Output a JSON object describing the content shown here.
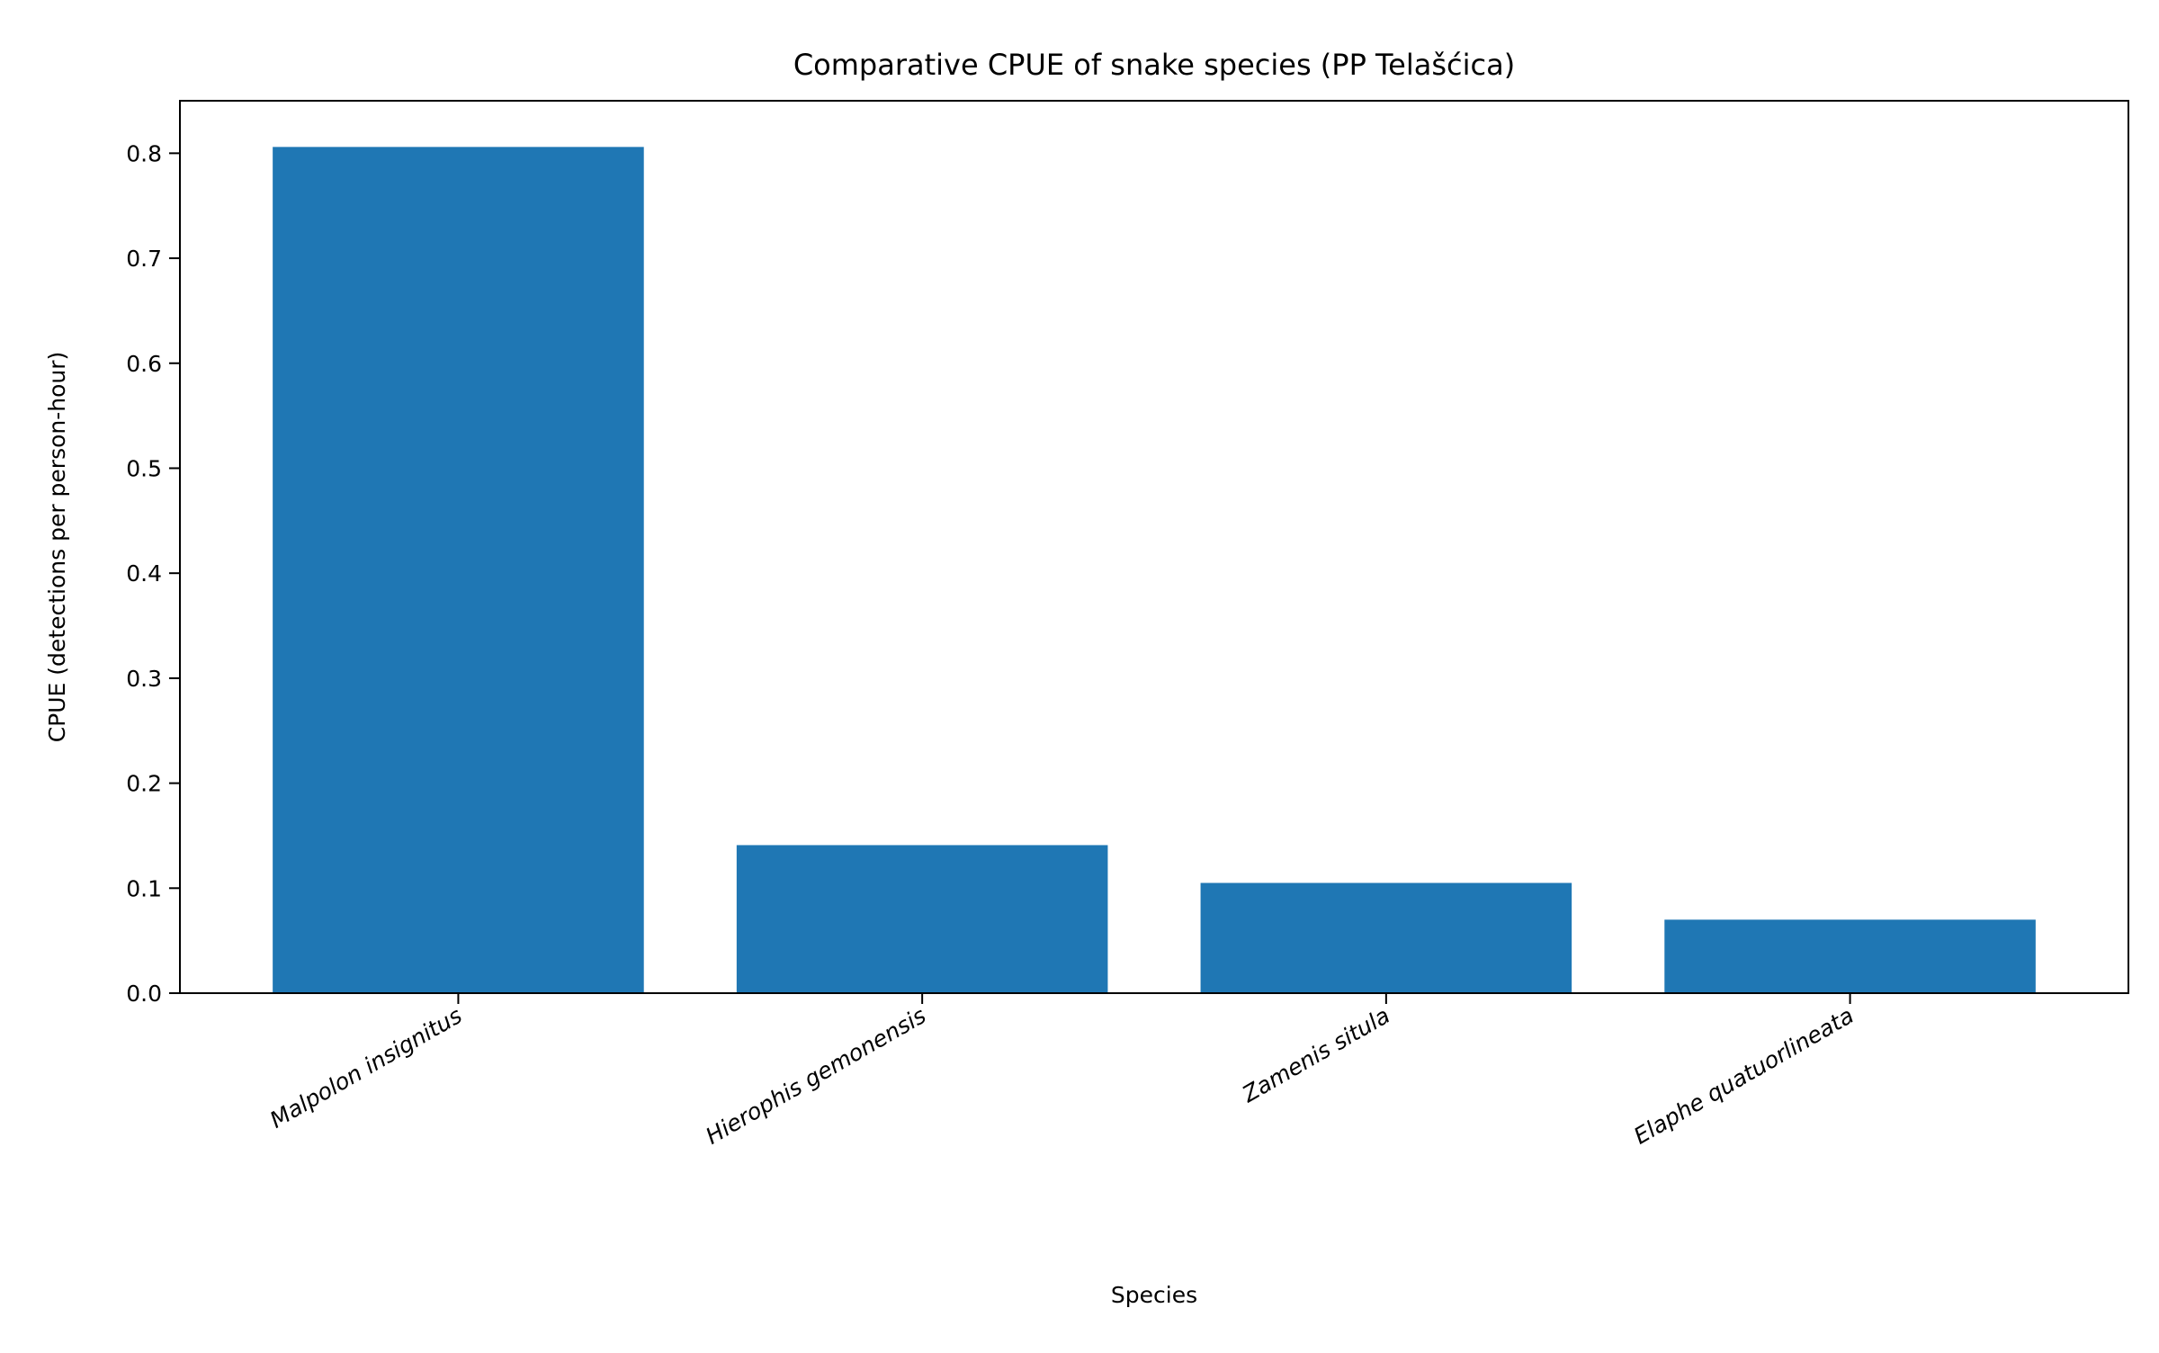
{
  "chart_data": {
    "type": "bar",
    "title": "Comparative CPUE of snake species (PP Telašćica)",
    "xlabel": "Species",
    "ylabel": "CPUE (detections per person-hour)",
    "categories": [
      "Malpolon insignitus",
      "Hierophis gemonensis",
      "Zamenis situla",
      "Elaphe quatuorlineata"
    ],
    "values": [
      0.806,
      0.141,
      0.105,
      0.07
    ],
    "ylim": [
      0,
      0.85
    ],
    "yticks": [
      "0.0",
      "0.1",
      "0.2",
      "0.3",
      "0.4",
      "0.5",
      "0.6",
      "0.7",
      "0.8"
    ],
    "grid": false,
    "bar_color": "#1f77b4"
  }
}
